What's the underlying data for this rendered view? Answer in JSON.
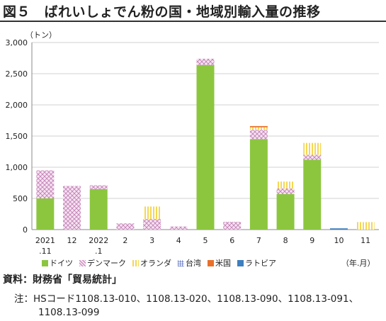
{
  "title": "図５　ばれいしょでん粉の国・地域別輸入量の推移",
  "y_unit": "（トン）",
  "x_unit": "（年.月）",
  "source": "資料：財務省「貿易統計」",
  "note_line1": "注：HSコード1108.13-010、1108.13-020、1108.13-090、1108.13-091、",
  "note_line2": "1108.13-099",
  "colors": {
    "ドイツ": "#8cc63f",
    "デンマーク": "#d9a6cf",
    "オランダ": "#f5d750",
    "台湾": "#8a9bd6",
    "米国": "#e8702a",
    "ラトビア": "#3d7fbf"
  },
  "chart_data": {
    "type": "bar",
    "stacked": true,
    "categories": [
      [
        "2021",
        ".11"
      ],
      [
        "12"
      ],
      [
        "2022",
        ".1"
      ],
      [
        "2"
      ],
      [
        "3"
      ],
      [
        "4"
      ],
      [
        "5"
      ],
      [
        "6"
      ],
      [
        "7"
      ],
      [
        "8"
      ],
      [
        "9"
      ],
      [
        "10"
      ],
      [
        "11"
      ]
    ],
    "ylim": [
      0,
      3000
    ],
    "yticks": [
      "0",
      "500",
      "1,000",
      "1,500",
      "2,000",
      "2,500",
      "3,000"
    ],
    "ytick_values": [
      0,
      500,
      1000,
      1500,
      2000,
      2500,
      3000
    ],
    "grid": true,
    "legend_position": "bottom",
    "series": [
      {
        "name": "ドイツ",
        "values": [
          500,
          0,
          650,
          0,
          0,
          0,
          2640,
          0,
          1450,
          570,
          1120,
          0,
          0
        ]
      },
      {
        "name": "デンマーク",
        "values": [
          450,
          700,
          60,
          100,
          170,
          50,
          100,
          125,
          150,
          90,
          80,
          0,
          0
        ]
      },
      {
        "name": "オランダ",
        "values": [
          0,
          0,
          0,
          0,
          200,
          0,
          0,
          0,
          40,
          110,
          190,
          0,
          120
        ]
      },
      {
        "name": "台湾",
        "values": [
          0,
          0,
          0,
          0,
          0,
          0,
          0,
          0,
          0,
          0,
          0,
          0,
          0
        ]
      },
      {
        "name": "米国",
        "values": [
          0,
          0,
          0,
          0,
          0,
          0,
          0,
          0,
          20,
          0,
          0,
          0,
          0
        ]
      },
      {
        "name": "ラトビア",
        "values": [
          0,
          0,
          0,
          0,
          0,
          0,
          0,
          0,
          0,
          0,
          0,
          20,
          0
        ]
      }
    ]
  }
}
